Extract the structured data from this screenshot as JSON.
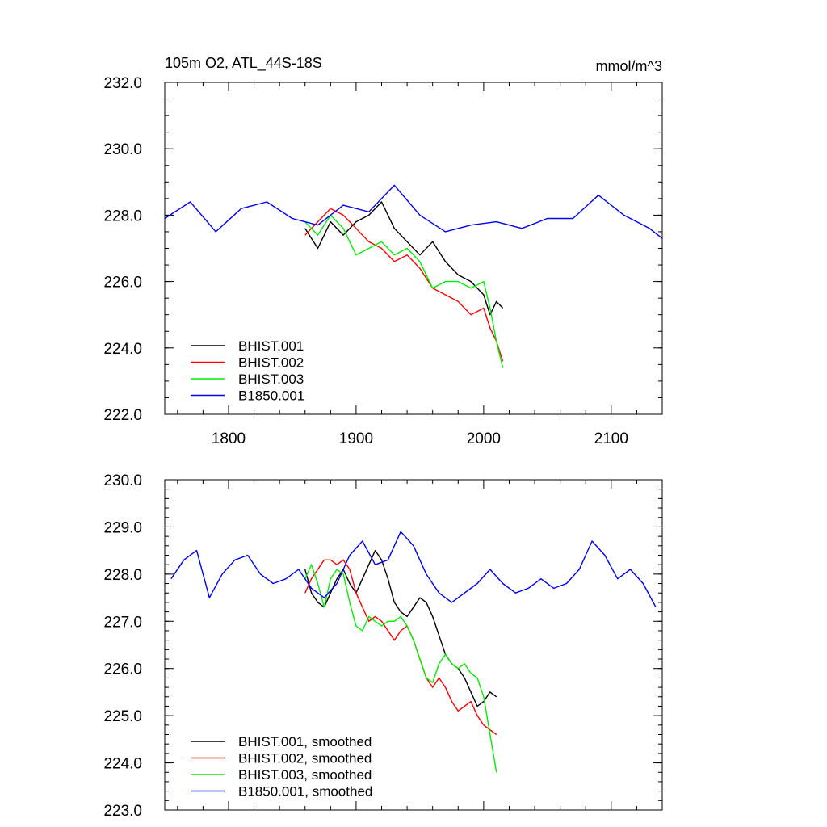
{
  "chart_data": [
    {
      "type": "line",
      "title": "105m O2, ATL_44S-18S",
      "units": "mmol/m^3",
      "xlim": [
        1750,
        2140
      ],
      "ylim": [
        222,
        232
      ],
      "xticks": [
        1800,
        1900,
        2000,
        2100
      ],
      "yticks": [
        222,
        224,
        226,
        228,
        230,
        232
      ],
      "ytick_labels": [
        "222.0",
        "224.0",
        "226.0",
        "228.0",
        "230.0",
        "232.0"
      ],
      "legend_position": "lower-left",
      "series": [
        {
          "name": "BHIST.001",
          "color": "#000000",
          "x": [
            1860,
            1870,
            1880,
            1890,
            1900,
            1910,
            1920,
            1930,
            1940,
            1950,
            1960,
            1970,
            1980,
            1990,
            2000,
            2005,
            2010,
            2015
          ],
          "y": [
            227.6,
            227.0,
            227.8,
            227.4,
            227.8,
            228.0,
            228.4,
            227.6,
            227.2,
            226.8,
            227.2,
            226.6,
            226.2,
            226.0,
            225.6,
            225.0,
            225.4,
            225.2
          ]
        },
        {
          "name": "BHIST.002",
          "color": "#ff0000",
          "x": [
            1860,
            1870,
            1880,
            1890,
            1900,
            1910,
            1920,
            1930,
            1940,
            1950,
            1960,
            1970,
            1980,
            1990,
            2000,
            2005,
            2010,
            2015
          ],
          "y": [
            227.4,
            227.8,
            228.2,
            228.0,
            227.6,
            227.2,
            227.0,
            226.6,
            226.8,
            226.4,
            225.8,
            225.6,
            225.4,
            225.0,
            225.2,
            224.6,
            224.2,
            223.6
          ]
        },
        {
          "name": "BHIST.003",
          "color": "#00ee00",
          "x": [
            1860,
            1870,
            1880,
            1890,
            1900,
            1910,
            1920,
            1930,
            1940,
            1950,
            1960,
            1970,
            1980,
            1990,
            2000,
            2005,
            2010,
            2015
          ],
          "y": [
            227.8,
            227.4,
            228.0,
            227.6,
            226.8,
            227.0,
            227.2,
            226.8,
            227.0,
            226.6,
            225.8,
            226.0,
            226.0,
            225.8,
            226.0,
            225.2,
            224.2,
            223.4
          ]
        },
        {
          "name": "B1850.001",
          "color": "#0000ee",
          "x": [
            1750,
            1770,
            1790,
            1810,
            1830,
            1850,
            1870,
            1890,
            1910,
            1930,
            1950,
            1970,
            1990,
            2010,
            2030,
            2050,
            2070,
            2090,
            2110,
            2130,
            2140
          ],
          "y": [
            227.9,
            228.4,
            227.5,
            228.2,
            228.4,
            227.9,
            227.7,
            228.3,
            228.1,
            228.9,
            228.0,
            227.5,
            227.7,
            227.8,
            227.6,
            227.9,
            227.9,
            228.6,
            228.0,
            227.6,
            227.3
          ]
        }
      ]
    },
    {
      "type": "line",
      "xlim": [
        1750,
        2140
      ],
      "ylim": [
        223,
        230
      ],
      "xticks": [
        1800,
        1900,
        2000,
        2100
      ],
      "yticks": [
        223,
        224,
        225,
        226,
        227,
        228,
        229,
        230
      ],
      "ytick_labels": [
        "223.0",
        "224.0",
        "225.0",
        "226.0",
        "227.0",
        "228.0",
        "229.0",
        "230.0"
      ],
      "legend_position": "lower-left",
      "series": [
        {
          "name": "BHIST.001, smoothed",
          "color": "#000000",
          "x": [
            1860,
            1865,
            1870,
            1875,
            1880,
            1885,
            1890,
            1895,
            1900,
            1905,
            1910,
            1915,
            1920,
            1925,
            1930,
            1935,
            1940,
            1945,
            1950,
            1955,
            1960,
            1965,
            1970,
            1975,
            1980,
            1985,
            1990,
            1995,
            2000,
            2005,
            2010
          ],
          "y": [
            228.1,
            227.6,
            227.4,
            227.3,
            227.6,
            227.9,
            228.1,
            227.8,
            227.6,
            227.9,
            228.2,
            228.5,
            228.3,
            227.9,
            227.4,
            227.2,
            227.1,
            227.3,
            227.5,
            227.4,
            227.1,
            226.7,
            226.3,
            226.1,
            226.0,
            225.8,
            225.5,
            225.2,
            225.3,
            225.5,
            225.4
          ]
        },
        {
          "name": "BHIST.002, smoothed",
          "color": "#ff0000",
          "x": [
            1860,
            1865,
            1870,
            1875,
            1880,
            1885,
            1890,
            1895,
            1900,
            1905,
            1910,
            1915,
            1920,
            1925,
            1930,
            1935,
            1940,
            1945,
            1950,
            1955,
            1960,
            1965,
            1970,
            1975,
            1980,
            1985,
            1990,
            1995,
            2000,
            2005,
            2010
          ],
          "y": [
            227.6,
            227.9,
            228.1,
            228.3,
            228.3,
            228.2,
            228.3,
            228.1,
            227.6,
            227.3,
            227.0,
            227.1,
            227.0,
            226.8,
            226.6,
            226.8,
            226.9,
            226.6,
            226.2,
            225.8,
            225.6,
            225.8,
            225.6,
            225.3,
            225.1,
            225.2,
            225.3,
            225.0,
            224.8,
            224.7,
            224.6
          ]
        },
        {
          "name": "BHIST.003, smoothed",
          "color": "#00ee00",
          "x": [
            1860,
            1865,
            1870,
            1875,
            1880,
            1885,
            1890,
            1895,
            1900,
            1905,
            1910,
            1915,
            1920,
            1925,
            1930,
            1935,
            1940,
            1945,
            1950,
            1955,
            1960,
            1965,
            1970,
            1975,
            1980,
            1985,
            1990,
            1995,
            2000,
            2005,
            2010
          ],
          "y": [
            227.9,
            228.2,
            227.8,
            227.3,
            227.9,
            228.1,
            228.0,
            227.4,
            226.9,
            226.8,
            227.1,
            227.0,
            226.9,
            227.0,
            227.0,
            227.1,
            226.9,
            226.6,
            226.2,
            225.8,
            225.7,
            226.1,
            226.3,
            226.1,
            226.0,
            226.1,
            225.9,
            225.8,
            225.4,
            224.6,
            223.8
          ]
        },
        {
          "name": "B1850.001, smoothed",
          "color": "#0000ee",
          "x": [
            1755,
            1765,
            1775,
            1785,
            1795,
            1805,
            1815,
            1825,
            1835,
            1845,
            1855,
            1865,
            1875,
            1885,
            1895,
            1905,
            1915,
            1925,
            1935,
            1945,
            1955,
            1965,
            1975,
            1985,
            1995,
            2005,
            2015,
            2025,
            2035,
            2045,
            2055,
            2065,
            2075,
            2085,
            2095,
            2105,
            2115,
            2125,
            2135
          ],
          "y": [
            227.9,
            228.3,
            228.5,
            227.5,
            228.0,
            228.3,
            228.4,
            228.0,
            227.8,
            227.9,
            228.1,
            227.7,
            227.5,
            227.8,
            228.4,
            228.7,
            228.2,
            228.3,
            228.9,
            228.6,
            228.0,
            227.6,
            227.4,
            227.6,
            227.8,
            228.1,
            227.8,
            227.6,
            227.7,
            227.9,
            227.7,
            227.8,
            228.1,
            228.7,
            228.4,
            227.9,
            228.1,
            227.8,
            227.3
          ]
        }
      ]
    }
  ]
}
